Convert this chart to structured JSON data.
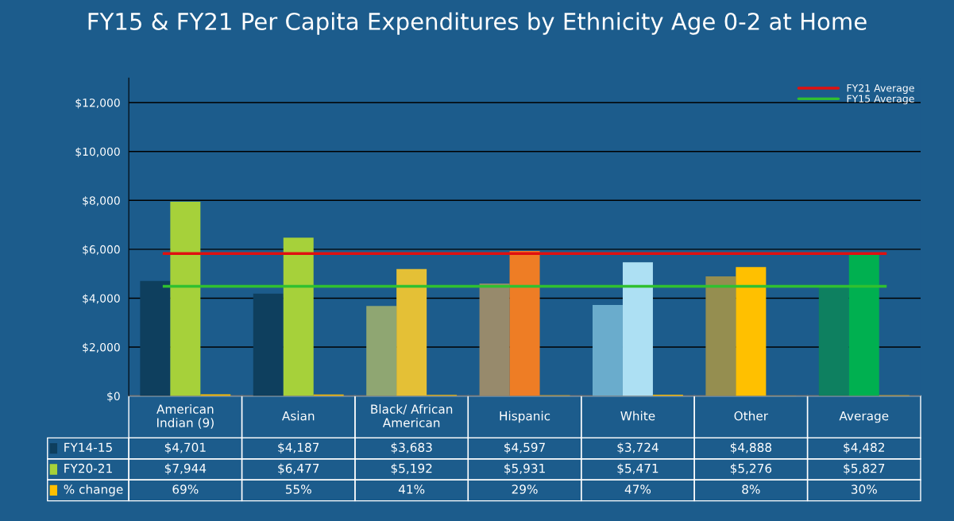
{
  "chart_data": {
    "type": "bar",
    "title": "FY15 & FY21 Per Capita Expenditures by Ethnicity Age 0-2 at Home",
    "categories": [
      "American\nIndian (9)",
      "Asian",
      "Black/ African\nAmerican",
      "Hispanic",
      "White",
      "Other",
      "Average"
    ],
    "series": [
      {
        "name": "FY14-15",
        "color": "#0e3f5e",
        "colors": [
          "#0e3f5e",
          "#0e3f5e",
          "#8fa672",
          "#978a6c",
          "#6aaccc",
          "#958e50",
          "#0e8060"
        ],
        "values": [
          4701,
          4187,
          3683,
          4597,
          3724,
          4888,
          4482
        ],
        "value_labels": [
          "$4,701",
          "$4,187",
          "$3,683",
          "$4,597",
          "$3,724",
          "$4,888",
          "$4,482"
        ]
      },
      {
        "name": "FY20-21",
        "color": "#a6d13a",
        "colors": [
          "#a6d13a",
          "#a6d13a",
          "#e4c036",
          "#ee7d25",
          "#ade0f3",
          "#ffc000",
          "#00b050"
        ],
        "values": [
          7944,
          6477,
          5192,
          5931,
          5471,
          5276,
          5827
        ],
        "value_labels": [
          "$7,944",
          "$6,477",
          "$5,192",
          "$5,931",
          "$5,471",
          "$5,276",
          "$5,827"
        ]
      },
      {
        "name": "% change",
        "color": "#ffc000",
        "values": [
          69,
          55,
          41,
          29,
          47,
          8,
          30
        ],
        "value_labels": [
          "69%",
          "55%",
          "41%",
          "29%",
          "47%",
          "8%",
          "30%"
        ]
      }
    ],
    "ylim": [
      0,
      13000
    ],
    "yticks": [
      {
        "value": 0,
        "label": "$0"
      },
      {
        "value": 2000,
        "label": "$2,000"
      },
      {
        "value": 4000,
        "label": "$4,000"
      },
      {
        "value": 6000,
        "label": "$6,000"
      },
      {
        "value": 8000,
        "label": "$8,000"
      },
      {
        "value": 10000,
        "label": "$10,000"
      },
      {
        "value": 12000,
        "label": "$12,000"
      }
    ],
    "grid": "y",
    "ref_lines": [
      {
        "axis": "y",
        "value": 5827,
        "label": "FY21 Average",
        "color": "#e01010"
      },
      {
        "axis": "y",
        "value": 4482,
        "label": "FY15 Average",
        "color": "#30c030"
      }
    ],
    "legend": "bottom left"
  }
}
